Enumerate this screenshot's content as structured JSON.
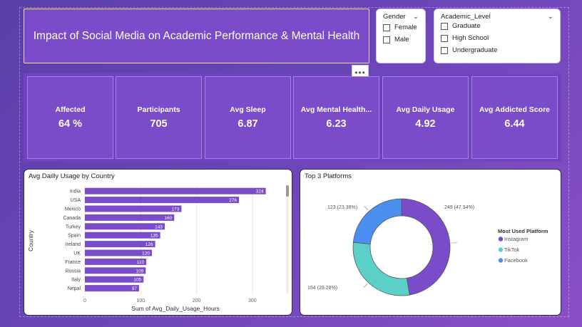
{
  "title": "Impact of Social Media on Academic Performance & Mental Health",
  "more_options": "•••",
  "gender_slicer": {
    "label": "Gender",
    "options": [
      "Female",
      "Male"
    ]
  },
  "academic_slicer": {
    "label": "Academic_Level",
    "options": [
      "Graduate",
      "High School",
      "Undergraduate"
    ]
  },
  "kpis": [
    {
      "label": "Affected",
      "value": "64 %"
    },
    {
      "label": "Participants",
      "value": "705"
    },
    {
      "label": "Avg Sleep",
      "value": "6.87"
    },
    {
      "label": "Avg Mental Health...",
      "value": "6.23"
    },
    {
      "label": "Avg Daily Usage",
      "value": "4.92"
    },
    {
      "label": "Avg Addicted Score",
      "value": "6.44"
    }
  ],
  "colors": {
    "bar": "#7b4cc9",
    "instagram": "#7b4cc9",
    "tiktok": "#5ccfc9",
    "facebook": "#4a8ff0"
  },
  "chart_data": [
    {
      "type": "bar",
      "orientation": "horizontal",
      "title": "Avg Dailly Usage by Country",
      "xlabel": "Sum of Avg_Daily_Usage_Hours",
      "ylabel": "Country",
      "xlim": [
        0,
        350
      ],
      "xticks": [
        "0",
        "100",
        "200",
        "300"
      ],
      "categories": [
        "India",
        "USA",
        "Mexico",
        "Canada",
        "Turkey",
        "Spain",
        "Ireland",
        "UK",
        "France",
        "Russia",
        "Italy",
        "Nepal"
      ],
      "values": [
        324,
        276,
        173,
        160,
        143,
        135,
        126,
        120,
        110,
        109,
        105,
        97
      ]
    },
    {
      "type": "pie",
      "donut": true,
      "title": "Top 3 Platforms",
      "legend_title": "Most Used Platform",
      "legend_position": "right",
      "slices": [
        {
          "name": "Instagram",
          "value": 249,
          "label": "249 (47.34%)"
        },
        {
          "name": "TikTok",
          "value": 154,
          "label": "154 (29.28%)"
        },
        {
          "name": "Facebook",
          "value": 123,
          "label": "123 (23.38%)"
        }
      ]
    }
  ]
}
